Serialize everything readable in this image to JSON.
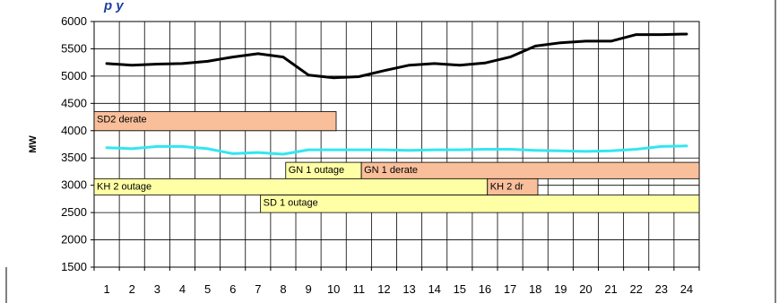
{
  "chart_data": {
    "type": "line",
    "title_partial": "p y",
    "ylabel": "MW",
    "xlabel": "",
    "ylim": [
      1500,
      6000
    ],
    "yticks": [
      "6000",
      "5500",
      "5000",
      "4500",
      "4000",
      "3500",
      "3000",
      "2500",
      "2000",
      "1500"
    ],
    "x": [
      "1",
      "2",
      "3",
      "4",
      "5",
      "6",
      "7",
      "8",
      "9",
      "10",
      "11",
      "12",
      "13",
      "14",
      "15",
      "16",
      "17",
      "18",
      "19",
      "20",
      "21",
      "22",
      "23",
      "24"
    ],
    "grid": true,
    "series": [
      {
        "color": "#000000",
        "values": [
          5230,
          5200,
          5220,
          5230,
          5270,
          5350,
          5410,
          5350,
          5020,
          4970,
          4990,
          5100,
          5200,
          5230,
          5200,
          5240,
          5350,
          5550,
          5610,
          5640,
          5640,
          5760,
          5760,
          5770
        ]
      },
      {
        "color": "#33e6f0",
        "values": [
          3690,
          3670,
          3710,
          3710,
          3670,
          3580,
          3600,
          3570,
          3650,
          3650,
          3650,
          3650,
          3640,
          3650,
          3650,
          3660,
          3660,
          3640,
          3630,
          3620,
          3630,
          3660,
          3710,
          3720
        ]
      }
    ],
    "events": [
      {
        "label": "SD2 derate",
        "start": 0.5,
        "end": 10.1,
        "top": 4350,
        "bottom": 4000,
        "color": "#f9bf9b"
      },
      {
        "label": "GN 1  outage",
        "start": 8.1,
        "end": 11.1,
        "top": 3420,
        "bottom": 3120,
        "color": "#ffffa6"
      },
      {
        "label": "GN 1 derate",
        "start": 11.1,
        "end": 24.5,
        "top": 3420,
        "bottom": 3120,
        "color": "#f9bf9b"
      },
      {
        "label": "KH 2  outage",
        "start": 0.5,
        "end": 16.1,
        "top": 3120,
        "bottom": 2820,
        "color": "#ffffa6"
      },
      {
        "label": "KH 2  dr",
        "start": 16.1,
        "end": 18.1,
        "top": 3120,
        "bottom": 2820,
        "color": "#f9bf9b"
      },
      {
        "label": "SD 1  outage",
        "start": 7.1,
        "end": 24.5,
        "top": 2820,
        "bottom": 2500,
        "color": "#ffffa6"
      }
    ],
    "colors": {
      "grid": "#000000",
      "frame": "#000000",
      "event_border": "#000000",
      "title": "#1f3f9f"
    }
  }
}
